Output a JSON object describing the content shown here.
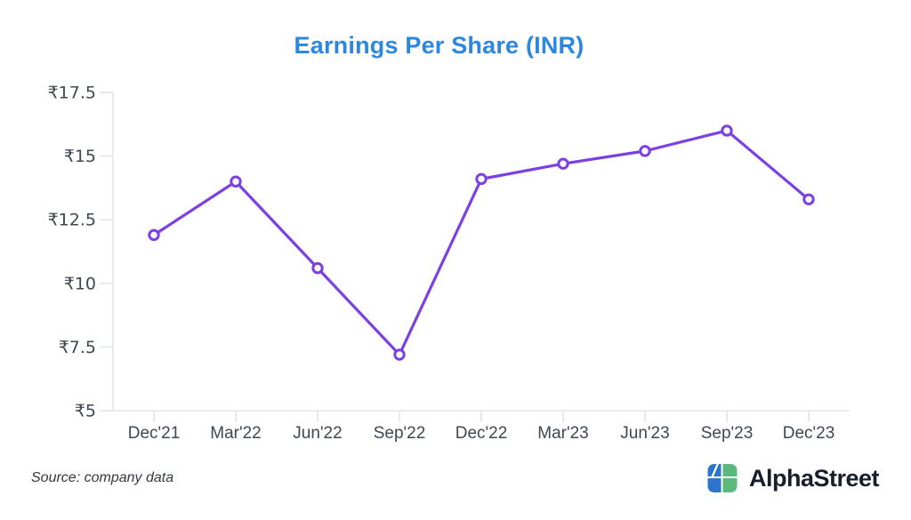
{
  "chart_data": {
    "type": "line",
    "title": "Earnings Per Share (INR)",
    "title_color": "#2B87E0",
    "categories": [
      "Dec'21",
      "Mar'22",
      "Jun'22",
      "Sep'22",
      "Dec'22",
      "Mar'23",
      "Jun'23",
      "Sep'23",
      "Dec'23"
    ],
    "values": [
      11.9,
      14.0,
      10.6,
      7.2,
      14.1,
      14.7,
      15.2,
      16.0,
      13.3
    ],
    "currency_prefix": "₹",
    "y_ticks": [
      17.5,
      15,
      12.5,
      10,
      7.5,
      5
    ],
    "ylim": [
      5,
      17.5
    ],
    "xlabel": "",
    "ylabel": "",
    "grid": false,
    "legend": "none",
    "line_color": "#7B3FE4",
    "marker": "open-circle",
    "marker_fill": "#FFFFFF",
    "axis_color": "#E3E6EA",
    "tick_label_color": "#3F4752"
  },
  "footer": {
    "source": "Source: company data",
    "brand": {
      "name": "AlphaStreet",
      "text_color": "#161F2A",
      "logo_blue": "#2B76CC",
      "logo_green": "#5CB97E"
    }
  }
}
